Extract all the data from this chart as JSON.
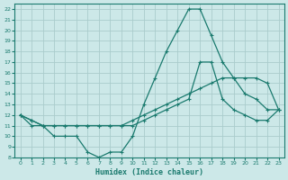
{
  "xlabel": "Humidex (Indice chaleur)",
  "bg_color": "#cce8e8",
  "grid_color": "#aacccc",
  "line_color": "#1a7a6e",
  "xlim": [
    -0.5,
    23.5
  ],
  "ylim": [
    8,
    22.5
  ],
  "xticks": [
    0,
    1,
    2,
    3,
    4,
    5,
    6,
    7,
    8,
    9,
    10,
    11,
    12,
    13,
    14,
    15,
    16,
    17,
    18,
    19,
    20,
    21,
    22,
    23
  ],
  "yticks": [
    8,
    9,
    10,
    11,
    12,
    13,
    14,
    15,
    16,
    17,
    18,
    19,
    20,
    21,
    22
  ],
  "line1_x": [
    0,
    1,
    2,
    3,
    4,
    5,
    6,
    7,
    8,
    9,
    10,
    11,
    12,
    13,
    14,
    15,
    16,
    17,
    18,
    19,
    20,
    21,
    22,
    23
  ],
  "line1_y": [
    12,
    11,
    11,
    10,
    10,
    10,
    8.5,
    8,
    8.5,
    8.5,
    10,
    13,
    15.5,
    18,
    20,
    22,
    22,
    19.5,
    17,
    15.5,
    14,
    13.5,
    12.5,
    12.5
  ],
  "line2_x": [
    0,
    1,
    2,
    3,
    4,
    5,
    6,
    7,
    8,
    9,
    10,
    11,
    12,
    13,
    14,
    15,
    16,
    17,
    18,
    19,
    20,
    21,
    22,
    23
  ],
  "line2_y": [
    12,
    11.5,
    11,
    11,
    11,
    11,
    11,
    11,
    11,
    11,
    11.5,
    12,
    12.5,
    13,
    13.5,
    14,
    14.5,
    15,
    15.5,
    15.5,
    15.5,
    15.5,
    15,
    12.5
  ],
  "line3_x": [
    0,
    1,
    2,
    3,
    4,
    5,
    6,
    7,
    8,
    9,
    10,
    11,
    12,
    13,
    14,
    15,
    16,
    17,
    18,
    19,
    20,
    21,
    22,
    23
  ],
  "line3_y": [
    12,
    11.5,
    11,
    11,
    11,
    11,
    11,
    11,
    11,
    11,
    11,
    11.5,
    12,
    12.5,
    13,
    13.5,
    17,
    17,
    13.5,
    12.5,
    12,
    11.5,
    11.5,
    12.5
  ]
}
